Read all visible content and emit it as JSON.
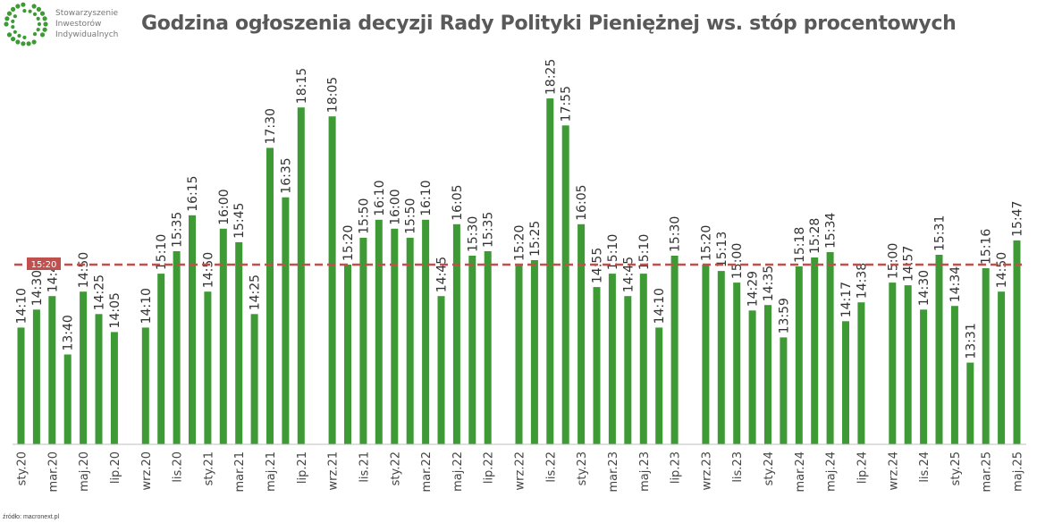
{
  "logo": {
    "icon": "dotted-ring-logo",
    "lines": [
      "Stowarzyszenie",
      "Inwestorów",
      "Indywidualnych"
    ]
  },
  "title": "Godzina ogłoszenia decyzji Rady Polityki Pieniężnej ws. stóp procentowych",
  "source": "źródło: macronext.pl",
  "colors": {
    "bar": "#3d9a35",
    "ref_line": "#c0504d",
    "text": "#595959"
  },
  "chart_data": {
    "type": "bar",
    "title": "Godzina ogłoszenia decyzji Rady Polityki Pieniężnej ws. stóp procentowych",
    "unit": "time of day (HH:MM)",
    "ylim": [
      "12:00",
      "18:50"
    ],
    "grid": false,
    "x_tick_labels": [
      "sty.20",
      "mar.20",
      "maj.20",
      "lip.20",
      "wrz.20",
      "lis.20",
      "sty.21",
      "mar.21",
      "maj.21",
      "lip.21",
      "wrz.21",
      "lis.21",
      "sty.22",
      "mar.22",
      "maj.22",
      "lip.22",
      "wrz.22",
      "lis.22",
      "sty.23",
      "mar.23",
      "maj.23",
      "lip.23",
      "wrz.23",
      "lis.23",
      "sty.24",
      "mar.24",
      "maj.24",
      "lip.24",
      "wrz.24",
      "lis.24",
      "sty.25",
      "mar.25",
      "maj.25"
    ],
    "reference_line": {
      "value": "15:20",
      "label": "15:20"
    },
    "values": [
      "14:10",
      "14:30",
      "14:45",
      "13:40",
      "14:50",
      "14:25",
      "14:05",
      null,
      "14:10",
      "15:10",
      "15:35",
      "16:15",
      "14:50",
      "16:00",
      "15:45",
      "14:25",
      "17:30",
      "16:35",
      "18:15",
      null,
      "18:05",
      "15:20",
      "15:50",
      "16:10",
      "16:00",
      "15:50",
      "16:10",
      "14:45",
      "16:05",
      "15:30",
      "15:35",
      null,
      "15:20",
      "15:25",
      "18:25",
      "17:55",
      "16:05",
      "14:55",
      "15:10",
      "14:45",
      "15:10",
      "14:10",
      "15:30",
      null,
      "15:20",
      "15:13",
      "15:00",
      "14:29",
      "14:35",
      "13:59",
      "15:18",
      "15:28",
      "15:34",
      "14:17",
      "14:38",
      null,
      "15:00",
      "14:57",
      "14:30",
      "15:31",
      "14:34",
      "13:31",
      "15:16",
      "14:50",
      "15:47"
    ]
  }
}
